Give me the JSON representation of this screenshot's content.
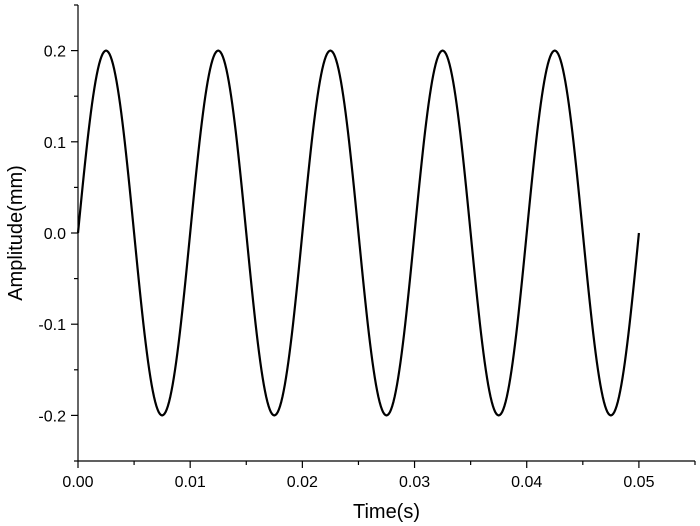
{
  "chart_data": {
    "type": "line",
    "title": "",
    "xlabel": "Time(s)",
    "ylabel": "Amplitude(mm)",
    "xlim": [
      0.0,
      0.055
    ],
    "ylim": [
      -0.25,
      0.25
    ],
    "grid": false,
    "x_ticks": [
      0.0,
      0.01,
      0.02,
      0.03,
      0.04,
      0.05
    ],
    "x_tick_labels": [
      "0.00",
      "0.01",
      "0.02",
      "0.03",
      "0.04",
      "0.05"
    ],
    "y_ticks": [
      0.2,
      0.1,
      0.0,
      -0.1,
      -0.2
    ],
    "y_tick_labels": [
      "0.2",
      "0.1",
      "0.0",
      "-0.1",
      "-0.2"
    ],
    "series": [
      {
        "color": "#000000",
        "x": [
          0.0,
          0.0025,
          0.005,
          0.0075,
          0.01,
          0.0125,
          0.015,
          0.0175,
          0.02,
          0.0225,
          0.025,
          0.0275,
          0.03,
          0.0325,
          0.035,
          0.0375,
          0.04,
          0.0425,
          0.045,
          0.0475,
          0.05
        ],
        "y": [
          0.0,
          0.2,
          0.0,
          -0.2,
          0.0,
          0.2,
          0.0,
          -0.2,
          0.0,
          0.2,
          0.0,
          -0.2,
          0.0,
          0.2,
          0.0,
          -0.2,
          0.0,
          0.2,
          0.0,
          -0.2,
          0.0
        ]
      }
    ]
  }
}
